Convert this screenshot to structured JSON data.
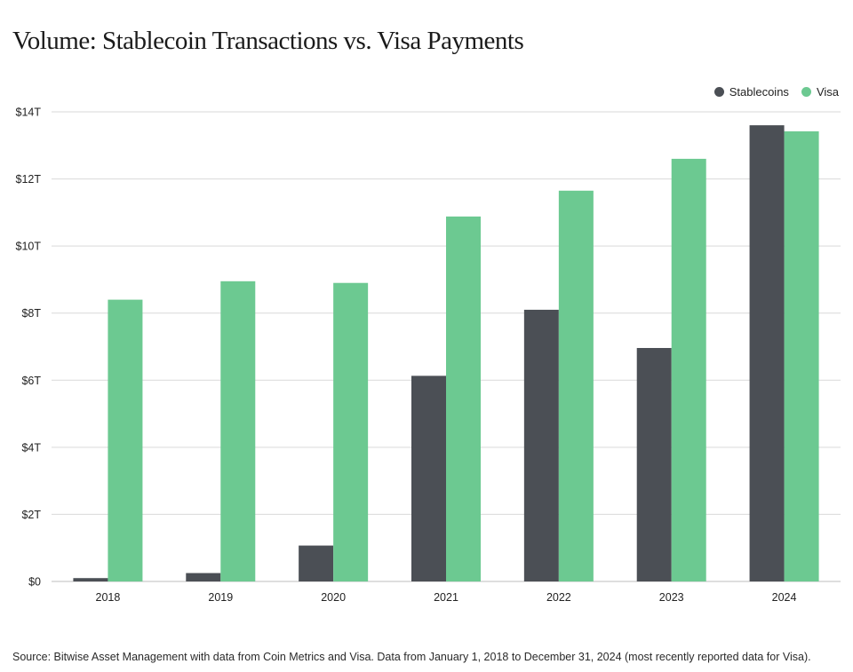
{
  "title": "Volume: Stablecoin Transactions vs. Visa Payments",
  "source": "Source: Bitwise Asset Management with data from Coin Metrics and Visa. Data from January 1, 2018 to December 31, 2024 (most recently reported data for Visa).",
  "colors": {
    "stablecoins": "#4b4f55",
    "visa": "#6cc991",
    "grid": "#d9d9d9"
  },
  "legend": [
    "Stablecoins",
    "Visa"
  ],
  "chart_data": {
    "type": "bar",
    "title": "Volume: Stablecoin Transactions vs. Visa Payments",
    "xlabel": "",
    "ylabel": "",
    "categories": [
      "2018",
      "2019",
      "2020",
      "2021",
      "2022",
      "2023",
      "2024"
    ],
    "series": [
      {
        "name": "Stablecoins",
        "values": [
          0.1,
          0.25,
          1.07,
          6.13,
          8.1,
          6.96,
          13.6
        ]
      },
      {
        "name": "Visa",
        "values": [
          8.4,
          8.95,
          8.9,
          10.88,
          11.65,
          12.6,
          13.42
        ]
      }
    ],
    "ylim": [
      0,
      14
    ],
    "yticks": [
      0,
      2,
      4,
      6,
      8,
      10,
      12,
      14
    ],
    "ytick_labels": [
      "$0",
      "$2T",
      "$4T",
      "$6T",
      "$8T",
      "$10T",
      "$12T",
      "$14T"
    ],
    "grid": true,
    "legend_position": "top-right"
  }
}
